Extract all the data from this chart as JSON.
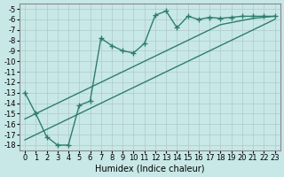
{
  "xlabel": "Humidex (Indice chaleur)",
  "ylabel": "",
  "background_color": "#c8e8e8",
  "grid_color": "#b0c8c8",
  "line_color": "#2e7d6e",
  "xlim": [
    -0.5,
    23.5
  ],
  "ylim": [
    -18.5,
    -4.5
  ],
  "yticks": [
    -5,
    -6,
    -7,
    -8,
    -9,
    -10,
    -11,
    -12,
    -13,
    -14,
    -15,
    -16,
    -17,
    -18
  ],
  "xticks": [
    0,
    1,
    2,
    3,
    4,
    5,
    6,
    7,
    8,
    9,
    10,
    11,
    12,
    13,
    14,
    15,
    16,
    17,
    18,
    19,
    20,
    21,
    22,
    23
  ],
  "line1_x": [
    0,
    1,
    2,
    3,
    4,
    5,
    6,
    7,
    8,
    9,
    10,
    11,
    12,
    13,
    14,
    15,
    16,
    17,
    18,
    19,
    20,
    21,
    22,
    23
  ],
  "line1_y": [
    -13.0,
    -15.0,
    -17.2,
    -18.0,
    -18.0,
    -14.2,
    -13.8,
    -7.8,
    -8.5,
    -9.0,
    -9.2,
    -8.3,
    -5.6,
    -5.2,
    -6.8,
    -5.7,
    -6.0,
    -5.8,
    -5.9,
    -5.8,
    -5.7,
    -5.7,
    -5.7,
    -5.7
  ],
  "line2_x": [
    0,
    1,
    2,
    3,
    4,
    5,
    6,
    7,
    8,
    9,
    10,
    11,
    12,
    13,
    14,
    15,
    16,
    17,
    18,
    19,
    20,
    21,
    22,
    23
  ],
  "line2_y": [
    -15.5,
    -15.0,
    -14.5,
    -14.0,
    -13.5,
    -13.0,
    -12.5,
    -12.0,
    -11.5,
    -11.0,
    -10.5,
    -10.0,
    -9.5,
    -9.0,
    -8.5,
    -8.0,
    -7.5,
    -7.0,
    -6.5,
    -6.3,
    -6.1,
    -5.9,
    -5.8,
    -5.7
  ],
  "line3_x": [
    0,
    1,
    2,
    3,
    4,
    5,
    6,
    7,
    8,
    9,
    10,
    11,
    12,
    13,
    14,
    15,
    16,
    17,
    18,
    19,
    20,
    21,
    22,
    23
  ],
  "line3_y": [
    -17.5,
    -17.0,
    -16.5,
    -16.0,
    -15.5,
    -15.0,
    -14.5,
    -14.0,
    -13.5,
    -13.0,
    -12.5,
    -12.0,
    -11.5,
    -11.0,
    -10.5,
    -10.0,
    -9.5,
    -9.0,
    -8.5,
    -8.0,
    -7.5,
    -7.0,
    -6.5,
    -6.0
  ],
  "marker": "+",
  "markersize": 4,
  "linewidth": 1.0,
  "tick_fontsize": 6,
  "label_fontsize": 7
}
